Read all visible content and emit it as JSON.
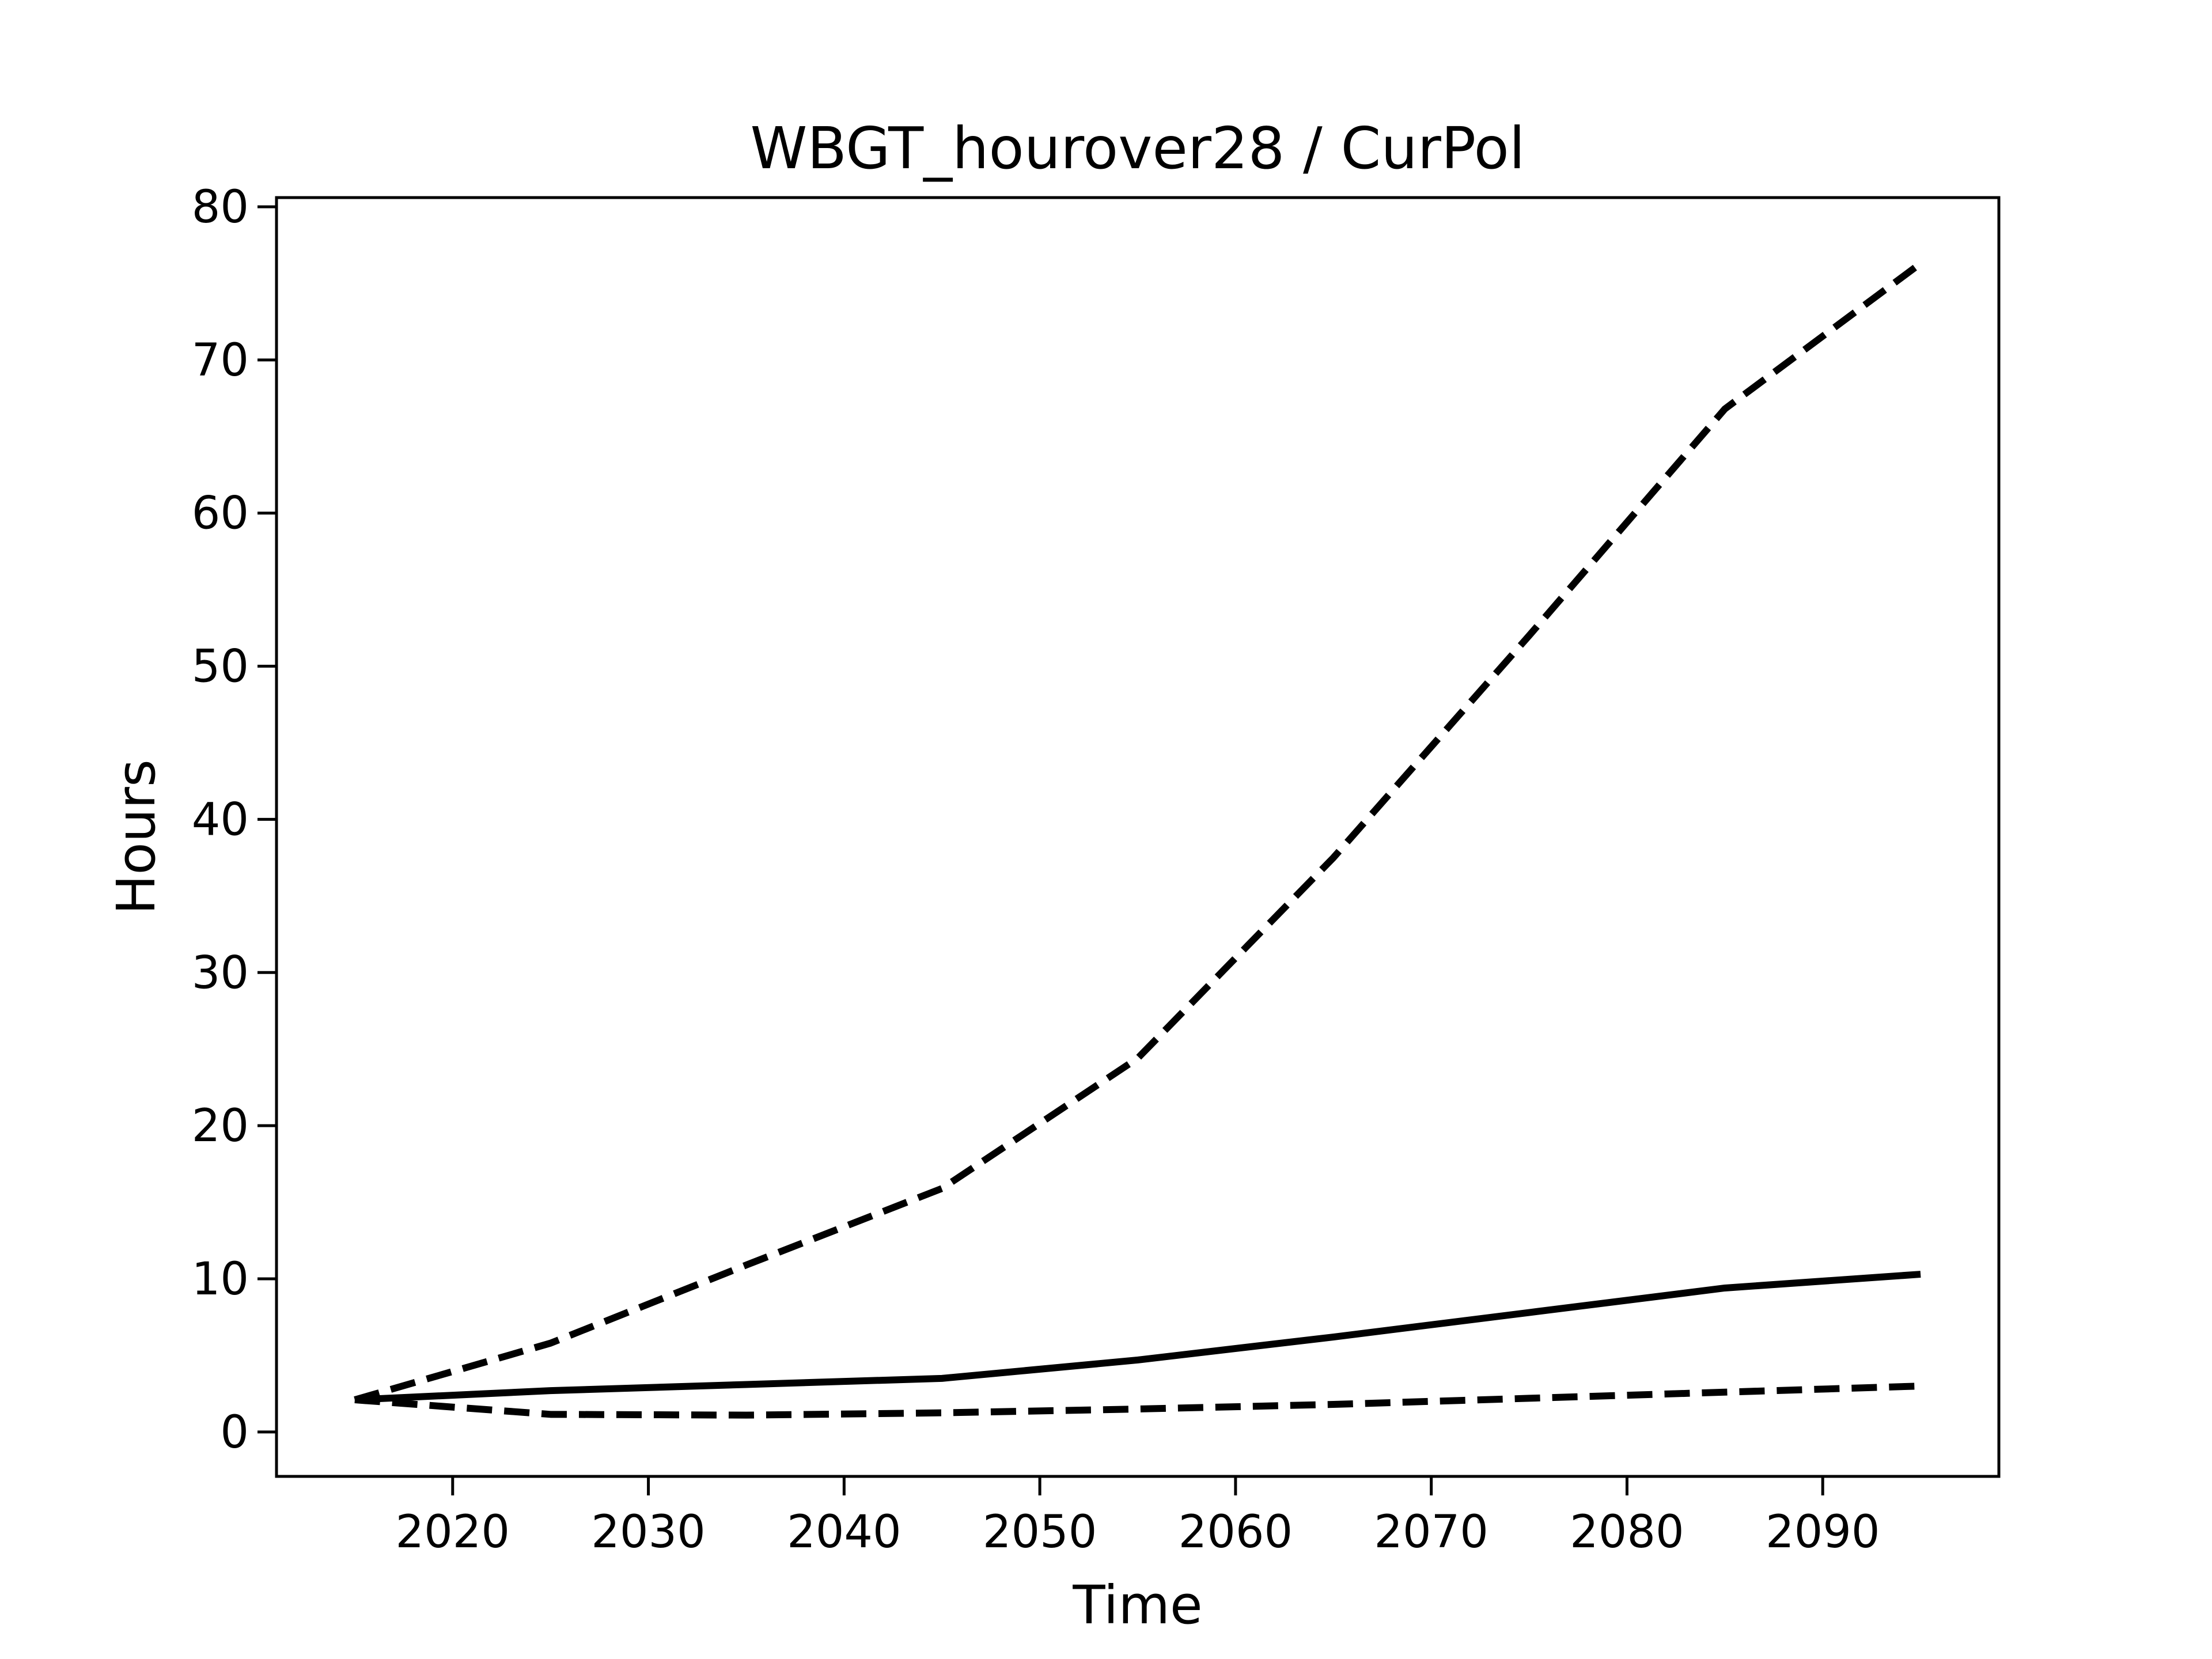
{
  "chart_data": {
    "type": "line",
    "title": "WBGT_hourover28 / CurPol",
    "xlabel": "Time",
    "ylabel": "Hours",
    "x": [
      2015,
      2025,
      2035,
      2045,
      2055,
      2065,
      2075,
      2085,
      2095
    ],
    "series": [
      {
        "name": "upper-dashed",
        "style": "dashed",
        "values": [
          2.1,
          5.8,
          10.9,
          15.9,
          24.4,
          37.5,
          52.0,
          66.8,
          76.3
        ]
      },
      {
        "name": "solid",
        "style": "solid",
        "values": [
          2.1,
          2.7,
          3.1,
          3.5,
          4.7,
          6.2,
          7.8,
          9.4,
          10.3
        ]
      },
      {
        "name": "lower-dashed",
        "style": "dashed",
        "values": [
          2.1,
          1.15,
          1.1,
          1.25,
          1.5,
          1.8,
          2.2,
          2.6,
          3.0
        ]
      }
    ],
    "xticks": [
      2020,
      2030,
      2040,
      2050,
      2060,
      2070,
      2080,
      2090
    ],
    "yticks": [
      0,
      10,
      20,
      30,
      40,
      50,
      60,
      70,
      80
    ],
    "xlim": [
      2011,
      2099
    ],
    "ylim": [
      -2.9,
      80.6
    ],
    "grid": false,
    "legend_position": "none",
    "line_color": "#000000",
    "background_color": "#ffffff"
  }
}
